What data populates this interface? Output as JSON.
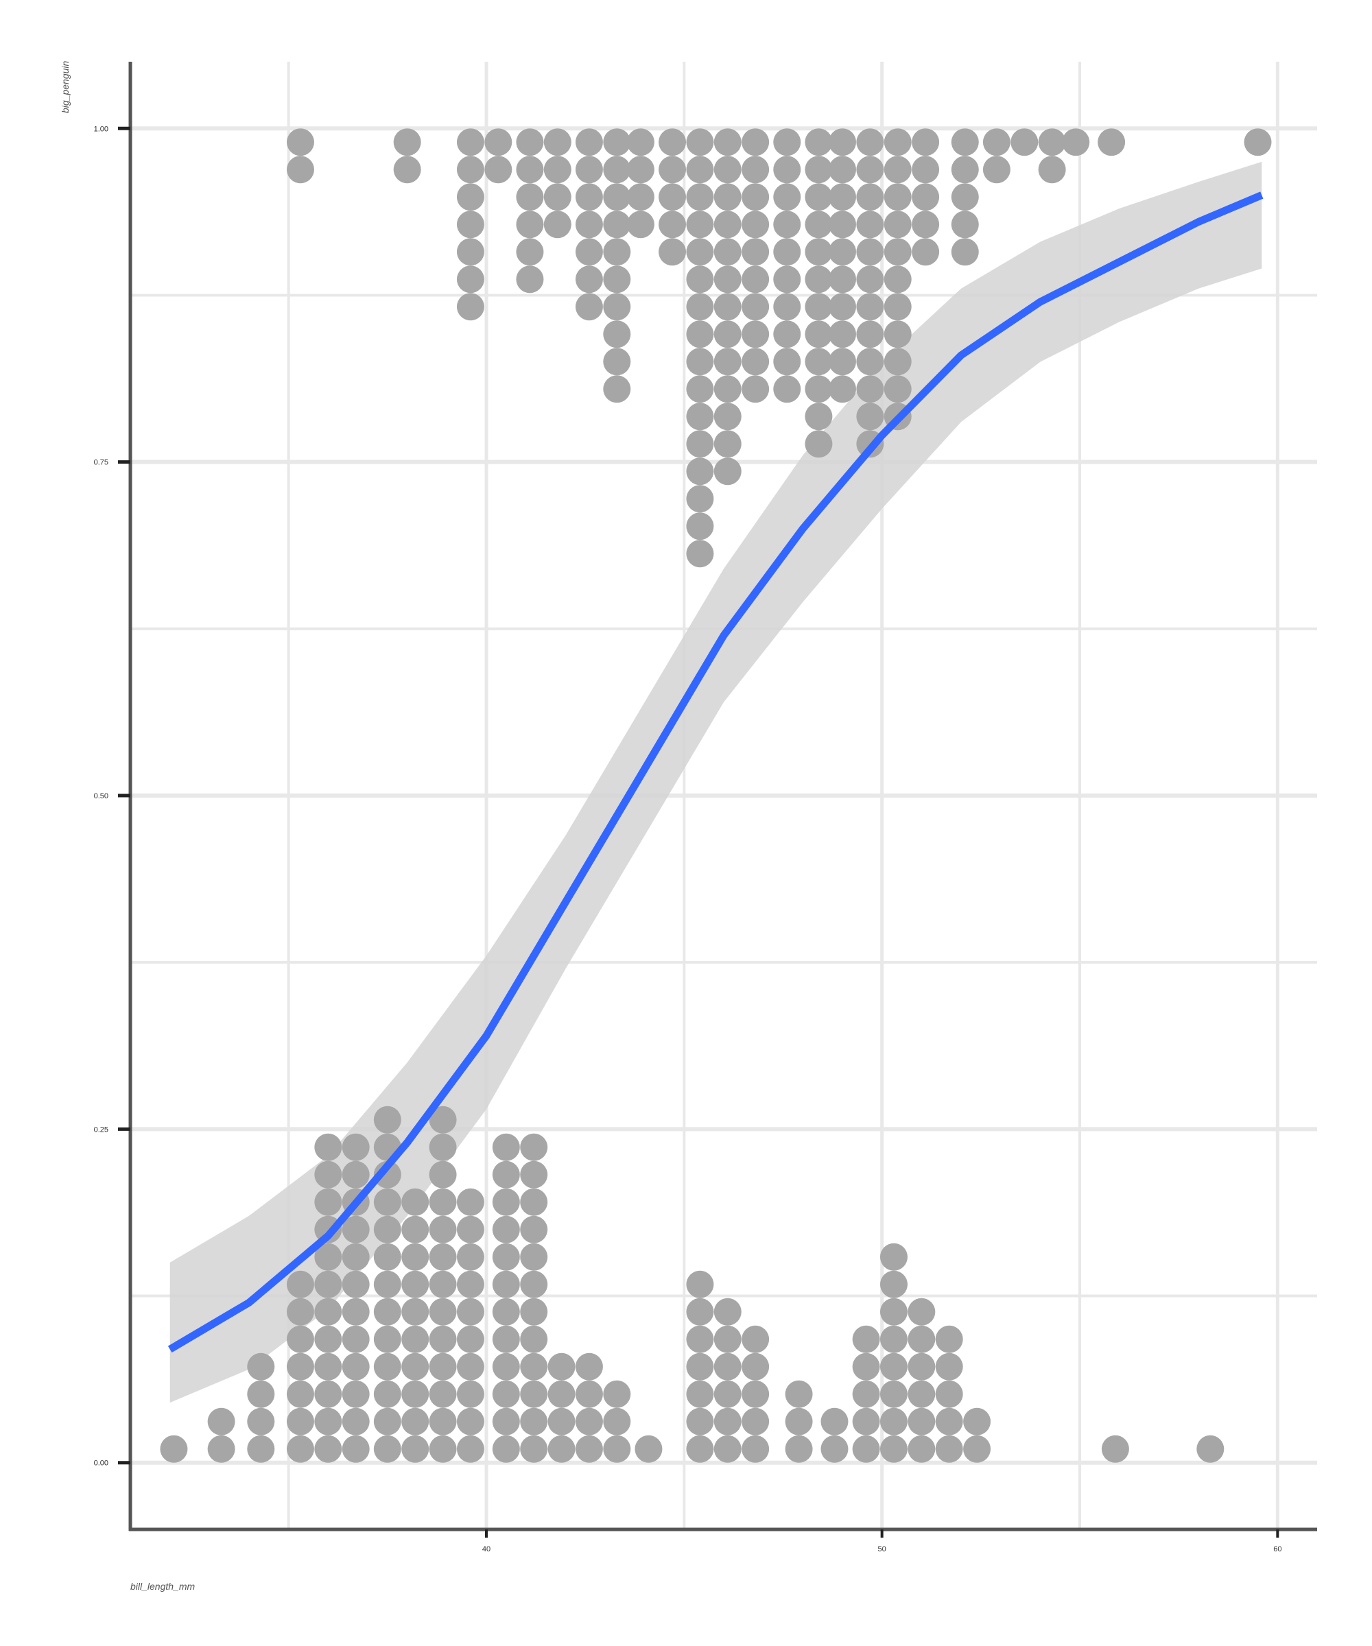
{
  "chart_data": {
    "type": "scatter",
    "subtype": "dotplot-with-logistic-fit",
    "title": "",
    "xlabel": "bill_length_mm",
    "ylabel": "big_penguin",
    "xlim": [
      31,
      61
    ],
    "ylim": [
      -0.05,
      1.05
    ],
    "x_ticks": [
      40,
      50,
      60
    ],
    "y_ticks": [
      0.0,
      0.25,
      0.5,
      0.75,
      1.0
    ],
    "x_tick_labels": [
      "40",
      "50",
      "60"
    ],
    "y_tick_labels": [
      "0.00",
      "0.25",
      "0.50",
      "0.75",
      "1.00"
    ],
    "grid": true,
    "legend": "none",
    "colors": {
      "dots": "#a6a6a6",
      "fit_line": "#3366ff",
      "ribbon": "#d4d4d4",
      "grid": "#e8e8e8",
      "axis": "#555555"
    },
    "dot_stacks": {
      "value_0": {
        "x": [
          32.1,
          33.3,
          34.3,
          35.3,
          36.0,
          36.7,
          37.5,
          38.2,
          38.9,
          39.6,
          40.5,
          41.2,
          41.9,
          42.6,
          43.3,
          44.1,
          45.4,
          46.1,
          46.8,
          47.9,
          48.8,
          49.6,
          50.3,
          51.0,
          51.7,
          52.4,
          55.9,
          58.3
        ],
        "count": [
          1,
          2,
          4,
          7,
          12,
          12,
          13,
          10,
          13,
          10,
          12,
          12,
          4,
          4,
          3,
          1,
          7,
          6,
          5,
          3,
          2,
          5,
          8,
          6,
          5,
          2,
          1,
          1
        ]
      },
      "value_1": {
        "x": [
          35.3,
          38.0,
          39.6,
          40.3,
          41.1,
          41.8,
          42.6,
          43.3,
          43.9,
          44.7,
          45.4,
          46.1,
          46.8,
          47.6,
          48.4,
          49.0,
          49.7,
          50.4,
          51.1,
          52.1,
          52.9,
          53.6,
          54.3,
          54.9,
          55.8,
          59.5
        ],
        "count": [
          2,
          2,
          7,
          2,
          6,
          4,
          7,
          10,
          4,
          5,
          16,
          13,
          10,
          10,
          12,
          10,
          12,
          11,
          5,
          5,
          2,
          1,
          2,
          1,
          1,
          1
        ]
      }
    },
    "fit_curve": {
      "method": "glm",
      "family": "binomial",
      "x": [
        32.0,
        34.0,
        36.0,
        38.0,
        40.0,
        42.0,
        44.0,
        45.0,
        46.0,
        48.0,
        50.0,
        52.0,
        54.0,
        56.0,
        58.0,
        59.6
      ],
      "y": [
        0.085,
        0.12,
        0.17,
        0.24,
        0.32,
        0.42,
        0.52,
        0.57,
        0.62,
        0.7,
        0.77,
        0.83,
        0.87,
        0.9,
        0.93,
        0.95
      ],
      "ci_lower": [
        0.045,
        0.07,
        0.115,
        0.185,
        0.265,
        0.37,
        0.47,
        0.52,
        0.57,
        0.645,
        0.715,
        0.78,
        0.825,
        0.855,
        0.88,
        0.895
      ],
      "ci_upper": [
        0.15,
        0.185,
        0.23,
        0.3,
        0.38,
        0.47,
        0.57,
        0.62,
        0.67,
        0.755,
        0.825,
        0.88,
        0.915,
        0.94,
        0.96,
        0.975
      ]
    }
  }
}
